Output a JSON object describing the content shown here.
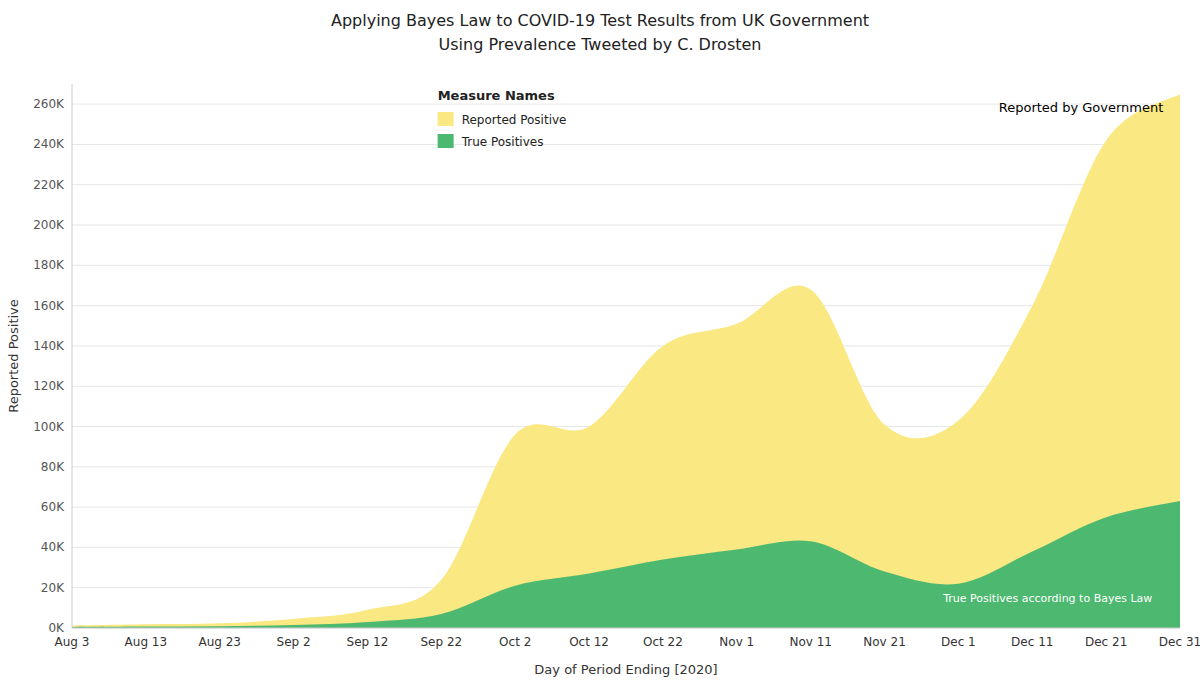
{
  "chart_data": {
    "type": "area",
    "title": "Applying Bayes Law to COVID-19 Test Results from UK Government",
    "subtitle": "Using Prevalence Tweeted by C. Drosten",
    "x_label": "Day of Period Ending [2020]",
    "y_label": "Reported Positive",
    "legend_title": "Measure Names",
    "legend": "top",
    "grid": true,
    "annotations": [
      "Reported by Government",
      "True Positives according to Bayes Law"
    ],
    "categories": [
      "Aug 3",
      "Aug 13",
      "Aug 23",
      "Sep 2",
      "Sep 12",
      "Sep 22",
      "Oct 2",
      "Oct 12",
      "Oct 22",
      "Nov 1",
      "Nov 11",
      "Nov 21",
      "Dec 1",
      "Dec 11",
      "Dec 21",
      "Dec 31"
    ],
    "series": [
      {
        "name": "Reported Positive",
        "color": "#FAE882",
        "values": [
          1200,
          1800,
          2300,
          4500,
          9000,
          24000,
          96000,
          100000,
          140000,
          151000,
          168000,
          101000,
          103000,
          160000,
          242000,
          265000
        ]
      },
      {
        "name": "True Positives",
        "color": "#4DB870",
        "values": [
          500,
          700,
          900,
          1500,
          3000,
          7000,
          21000,
          27000,
          34000,
          39000,
          43000,
          28000,
          22000,
          38000,
          55000,
          63000
        ]
      }
    ],
    "ylim": [
      0,
      270000
    ],
    "yticks": [
      {
        "value": 0,
        "label": "0K"
      },
      {
        "value": 20000,
        "label": "20K"
      },
      {
        "value": 40000,
        "label": "40K"
      },
      {
        "value": 60000,
        "label": "60K"
      },
      {
        "value": 80000,
        "label": "80K"
      },
      {
        "value": 100000,
        "label": "100K"
      },
      {
        "value": 120000,
        "label": "120K"
      },
      {
        "value": 140000,
        "label": "140K"
      },
      {
        "value": 160000,
        "label": "160K"
      },
      {
        "value": 180000,
        "label": "180K"
      },
      {
        "value": 200000,
        "label": "200K"
      },
      {
        "value": 220000,
        "label": "220K"
      },
      {
        "value": 240000,
        "label": "240K"
      },
      {
        "value": 260000,
        "label": "260K"
      }
    ]
  }
}
